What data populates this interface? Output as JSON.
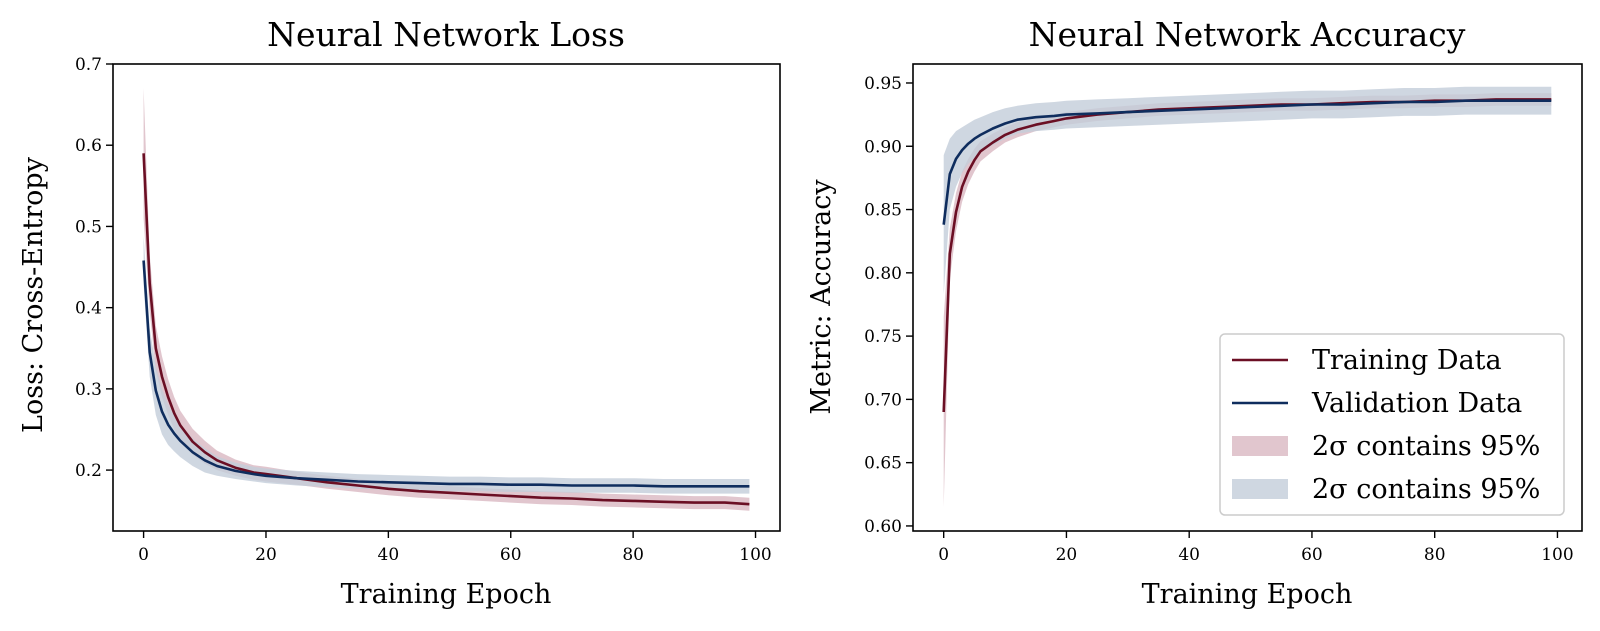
{
  "colors": {
    "training": "#6b0f24",
    "validation": "#0f2d5e",
    "training_band": "#d9b8c2",
    "validation_band": "#c3cdda"
  },
  "chart_data": [
    {
      "type": "line",
      "title": "Neural Network Loss",
      "xlabel": "Training Epoch",
      "ylabel": "Loss: Cross-Entropy",
      "xlim": [
        -5,
        104
      ],
      "ylim": [
        0.125,
        0.7
      ],
      "xticks": [
        0,
        20,
        40,
        60,
        80,
        100
      ],
      "yticks": [
        0.2,
        0.3,
        0.4,
        0.5,
        0.6,
        0.7
      ],
      "xtick_labels": [
        "0",
        "20",
        "40",
        "60",
        "80",
        "100"
      ],
      "ytick_labels": [
        "0.2",
        "0.3",
        "0.4",
        "0.5",
        "0.6",
        "0.7"
      ],
      "grid": false,
      "x": [
        0,
        1,
        2,
        3,
        4,
        5,
        6,
        8,
        10,
        12,
        15,
        18,
        20,
        25,
        30,
        35,
        40,
        45,
        50,
        55,
        60,
        65,
        70,
        75,
        80,
        85,
        90,
        95,
        99
      ],
      "series": [
        {
          "name": "Training Data",
          "values": [
            0.59,
            0.43,
            0.35,
            0.315,
            0.29,
            0.27,
            0.255,
            0.235,
            0.222,
            0.212,
            0.203,
            0.197,
            0.195,
            0.19,
            0.185,
            0.181,
            0.177,
            0.174,
            0.172,
            0.17,
            0.168,
            0.166,
            0.165,
            0.163,
            0.162,
            0.161,
            0.16,
            0.16,
            0.158
          ],
          "band": [
            0.08,
            0.035,
            0.028,
            0.025,
            0.022,
            0.02,
            0.018,
            0.016,
            0.014,
            0.012,
            0.01,
            0.009,
            0.009,
            0.008,
            0.008,
            0.008,
            0.008,
            0.008,
            0.008,
            0.008,
            0.008,
            0.008,
            0.008,
            0.008,
            0.008,
            0.008,
            0.008,
            0.008,
            0.008
          ]
        },
        {
          "name": "Validation Data",
          "values": [
            0.458,
            0.345,
            0.298,
            0.272,
            0.256,
            0.245,
            0.236,
            0.222,
            0.212,
            0.205,
            0.199,
            0.195,
            0.193,
            0.19,
            0.188,
            0.186,
            0.185,
            0.184,
            0.183,
            0.183,
            0.182,
            0.182,
            0.181,
            0.181,
            0.181,
            0.18,
            0.18,
            0.18,
            0.18
          ],
          "band": [
            0.03,
            0.03,
            0.03,
            0.028,
            0.025,
            0.022,
            0.02,
            0.017,
            0.015,
            0.012,
            0.01,
            0.009,
            0.009,
            0.009,
            0.009,
            0.009,
            0.009,
            0.009,
            0.009,
            0.009,
            0.009,
            0.009,
            0.009,
            0.009,
            0.009,
            0.009,
            0.009,
            0.009,
            0.009
          ]
        }
      ]
    },
    {
      "type": "line",
      "title": "Neural Network Accuracy",
      "xlabel": "Training Epoch",
      "ylabel": "Metric: Accuracy",
      "xlim": [
        -5,
        104
      ],
      "ylim": [
        0.596,
        0.965
      ],
      "xticks": [
        0,
        20,
        40,
        60,
        80,
        100
      ],
      "yticks": [
        0.6,
        0.65,
        0.7,
        0.75,
        0.8,
        0.85,
        0.9,
        0.95
      ],
      "xtick_labels": [
        "0",
        "20",
        "40",
        "60",
        "80",
        "100"
      ],
      "ytick_labels": [
        "0.60",
        "0.65",
        "0.70",
        "0.75",
        "0.80",
        "0.85",
        "0.90",
        "0.95"
      ],
      "grid": false,
      "legend_position": "lower-right",
      "x": [
        0,
        1,
        2,
        3,
        4,
        5,
        6,
        8,
        10,
        12,
        15,
        18,
        20,
        25,
        30,
        35,
        40,
        45,
        50,
        55,
        60,
        65,
        70,
        75,
        80,
        85,
        90,
        95,
        99
      ],
      "series": [
        {
          "name": "Training Data",
          "values": [
            0.69,
            0.815,
            0.848,
            0.868,
            0.88,
            0.889,
            0.896,
            0.903,
            0.909,
            0.913,
            0.917,
            0.92,
            0.922,
            0.925,
            0.927,
            0.929,
            0.93,
            0.931,
            0.932,
            0.933,
            0.933,
            0.934,
            0.935,
            0.935,
            0.936,
            0.936,
            0.937,
            0.937,
            0.937
          ],
          "band": [
            0.075,
            0.02,
            0.015,
            0.012,
            0.01,
            0.009,
            0.008,
            0.007,
            0.006,
            0.006,
            0.005,
            0.005,
            0.005,
            0.005,
            0.005,
            0.005,
            0.005,
            0.005,
            0.005,
            0.005,
            0.005,
            0.005,
            0.005,
            0.005,
            0.005,
            0.005,
            0.005,
            0.005,
            0.005
          ]
        },
        {
          "name": "Validation Data",
          "values": [
            0.838,
            0.878,
            0.89,
            0.897,
            0.902,
            0.906,
            0.909,
            0.914,
            0.918,
            0.921,
            0.923,
            0.924,
            0.925,
            0.926,
            0.927,
            0.928,
            0.929,
            0.93,
            0.931,
            0.932,
            0.933,
            0.933,
            0.934,
            0.935,
            0.935,
            0.936,
            0.936,
            0.936,
            0.936
          ],
          "band": [
            0.055,
            0.028,
            0.022,
            0.018,
            0.016,
            0.015,
            0.014,
            0.013,
            0.012,
            0.011,
            0.011,
            0.011,
            0.011,
            0.011,
            0.011,
            0.011,
            0.011,
            0.011,
            0.011,
            0.011,
            0.011,
            0.011,
            0.011,
            0.011,
            0.011,
            0.011,
            0.011,
            0.011,
            0.011
          ]
        }
      ],
      "legend": [
        {
          "label": "Training Data",
          "kind": "line",
          "color_key": "training"
        },
        {
          "label": "Validation Data",
          "kind": "line",
          "color_key": "validation"
        },
        {
          "label": "2σ contains 95%",
          "kind": "patch",
          "color_key": "training_band"
        },
        {
          "label": "2σ contains 95%",
          "kind": "patch",
          "color_key": "validation_band"
        }
      ]
    }
  ]
}
